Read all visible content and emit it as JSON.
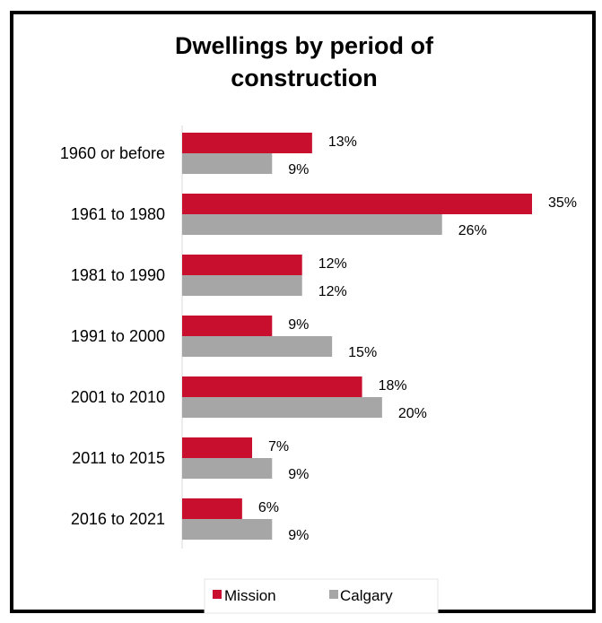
{
  "chart_data": {
    "type": "bar",
    "orientation": "horizontal",
    "title_lines": [
      "Dwellings by period of",
      "construction"
    ],
    "categories": [
      "1960 or before",
      "1961 to 1980",
      "1981 to 1990",
      "1991 to 2000",
      "2001 to 2010",
      "2011 to 2015",
      "2016 to 2021"
    ],
    "series": [
      {
        "name": "Mission",
        "color": "#c8102e",
        "values": [
          13,
          35,
          12,
          9,
          18,
          7,
          6
        ],
        "labels": [
          "13%",
          "35%",
          "12%",
          "9%",
          "18%",
          "7%",
          "6%"
        ]
      },
      {
        "name": "Calgary",
        "color": "#a6a6a6",
        "values": [
          9,
          26,
          12,
          15,
          20,
          9,
          9
        ],
        "labels": [
          "9%",
          "26%",
          "12%",
          "15%",
          "20%",
          "9%",
          "9%"
        ]
      }
    ],
    "unit": "%",
    "xlim": [
      0,
      35
    ],
    "axis_visible": false,
    "grid": false,
    "legend_position": "bottom"
  }
}
